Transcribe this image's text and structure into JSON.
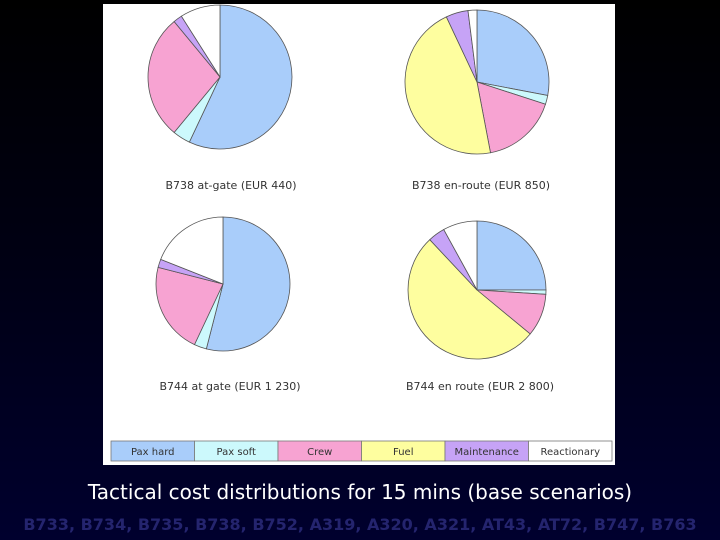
{
  "caption": "Tactical cost distributions for 15 mins (base scenarios)",
  "aircraft_list": "B733, B734, B735, B738, B752, A319, A320, A321, AT43, AT72, B747, B763",
  "colors": {
    "Pax hard": "#a9cdfa",
    "Pax soft": "#ccf9fc",
    "Crew": "#f7a3d2",
    "Fuel": "#fefe9f",
    "Maintenance": "#c6a3f6",
    "Reactionary": "#ffffff"
  },
  "chart_data": [
    {
      "type": "pie",
      "label": "B738 at-gate (EUR 440)",
      "categories": [
        "Pax hard",
        "Pax soft",
        "Crew",
        "Fuel",
        "Maintenance",
        "Reactionary"
      ],
      "values": [
        57,
        4,
        28,
        0,
        2,
        9
      ]
    },
    {
      "type": "pie",
      "label": "B738 en-route (EUR 850)",
      "categories": [
        "Pax hard",
        "Pax soft",
        "Crew",
        "Fuel",
        "Maintenance",
        "Reactionary"
      ],
      "values": [
        28,
        2,
        17,
        46,
        5,
        2
      ]
    },
    {
      "type": "pie",
      "label": "B744 at gate (EUR 1 230)",
      "categories": [
        "Pax hard",
        "Pax soft",
        "Crew",
        "Fuel",
        "Maintenance",
        "Reactionary"
      ],
      "values": [
        54,
        3,
        22,
        0,
        2,
        19
      ]
    },
    {
      "type": "pie",
      "label": "B744 en route (EUR 2 800)",
      "categories": [
        "Pax hard",
        "Pax soft",
        "Crew",
        "Fuel",
        "Maintenance",
        "Reactionary"
      ],
      "values": [
        25,
        1,
        10,
        52,
        4,
        8
      ]
    }
  ]
}
